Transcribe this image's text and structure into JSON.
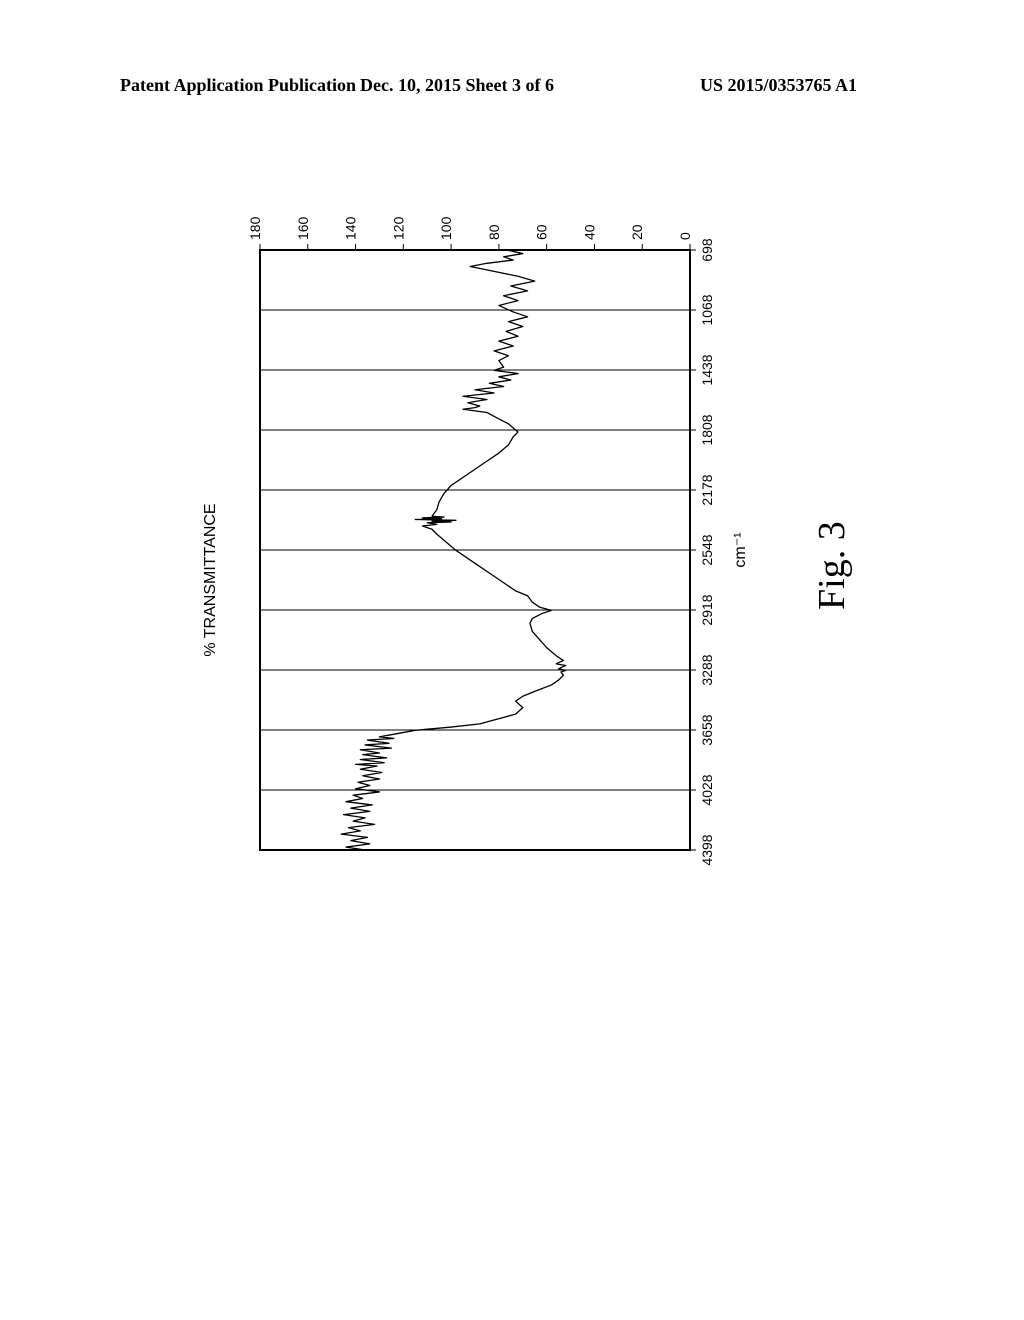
{
  "header": {
    "left": "Patent Application Publication",
    "middle": "Dec. 10, 2015  Sheet 3 of 6",
    "right": "US 2015/0353765 A1"
  },
  "figure_label": "Fig. 3",
  "chart": {
    "type": "line",
    "orientation_note": "rendered rotated -90deg like original (reads sideways)",
    "x_axis": {
      "label": "cm⁻¹",
      "ticks": [
        4398,
        4028,
        3658,
        3288,
        2918,
        2548,
        2178,
        1808,
        1438,
        1068,
        698
      ],
      "min": 4398,
      "max": 698,
      "tick_fontsize": 14,
      "label_fontsize": 16
    },
    "y_axis": {
      "label": "% TRANSMITTANCE",
      "ticks": [
        0,
        20,
        40,
        60,
        80,
        100,
        120,
        140,
        160,
        180
      ],
      "min": 0,
      "max": 180,
      "tick_fontsize": 14,
      "label_fontsize": 16
    },
    "grid": {
      "show_x": true,
      "show_y": false,
      "color": "#000000",
      "width": 1
    },
    "border_color": "#000000",
    "border_width": 2,
    "background_color": "#ffffff",
    "series": {
      "color": "#000000",
      "width": 1.3,
      "points": [
        [
          4398,
          136
        ],
        [
          4380,
          144
        ],
        [
          4360,
          134
        ],
        [
          4340,
          142
        ],
        [
          4320,
          135
        ],
        [
          4300,
          146
        ],
        [
          4280,
          138
        ],
        [
          4260,
          143
        ],
        [
          4240,
          132
        ],
        [
          4220,
          141
        ],
        [
          4200,
          136
        ],
        [
          4180,
          145
        ],
        [
          4160,
          134
        ],
        [
          4140,
          142
        ],
        [
          4120,
          133
        ],
        [
          4100,
          144
        ],
        [
          4080,
          137
        ],
        [
          4060,
          141
        ],
        [
          4040,
          130
        ],
        [
          4020,
          140
        ],
        [
          4000,
          134
        ],
        [
          3980,
          139
        ],
        [
          3960,
          130
        ],
        [
          3940,
          137
        ],
        [
          3920,
          129
        ],
        [
          3900,
          138
        ],
        [
          3880,
          131
        ],
        [
          3870,
          140
        ],
        [
          3860,
          128
        ],
        [
          3840,
          138
        ],
        [
          3830,
          127
        ],
        [
          3810,
          137
        ],
        [
          3800,
          130
        ],
        [
          3780,
          138
        ],
        [
          3770,
          125
        ],
        [
          3750,
          136
        ],
        [
          3740,
          126
        ],
        [
          3720,
          135
        ],
        [
          3710,
          124
        ],
        [
          3700,
          130
        ],
        [
          3660,
          115
        ],
        [
          3640,
          100
        ],
        [
          3620,
          88
        ],
        [
          3600,
          83
        ],
        [
          3560,
          73
        ],
        [
          3520,
          70
        ],
        [
          3480,
          73
        ],
        [
          3450,
          70
        ],
        [
          3420,
          65
        ],
        [
          3380,
          58
        ],
        [
          3350,
          55
        ],
        [
          3320,
          53
        ],
        [
          3300,
          54
        ],
        [
          3290,
          52
        ],
        [
          3280,
          55
        ],
        [
          3260,
          52
        ],
        [
          3250,
          56
        ],
        [
          3230,
          53
        ],
        [
          3200,
          56
        ],
        [
          3150,
          60
        ],
        [
          3100,
          63
        ],
        [
          3050,
          66
        ],
        [
          3000,
          67
        ],
        [
          2970,
          66
        ],
        [
          2940,
          62
        ],
        [
          2920,
          58
        ],
        [
          2900,
          63
        ],
        [
          2870,
          66
        ],
        [
          2830,
          68
        ],
        [
          2800,
          73
        ],
        [
          2750,
          78
        ],
        [
          2700,
          83
        ],
        [
          2650,
          88
        ],
        [
          2600,
          93
        ],
        [
          2550,
          98
        ],
        [
          2500,
          102
        ],
        [
          2450,
          106
        ],
        [
          2420,
          108
        ],
        [
          2400,
          112
        ],
        [
          2390,
          106
        ],
        [
          2380,
          110
        ],
        [
          2375,
          100
        ],
        [
          2370,
          108
        ],
        [
          2365,
          98
        ],
        [
          2360,
          115
        ],
        [
          2355,
          104
        ],
        [
          2350,
          112
        ],
        [
          2345,
          103
        ],
        [
          2340,
          108
        ],
        [
          2300,
          106
        ],
        [
          2250,
          105
        ],
        [
          2200,
          103
        ],
        [
          2150,
          100
        ],
        [
          2100,
          95
        ],
        [
          2050,
          90
        ],
        [
          2000,
          85
        ],
        [
          1950,
          80
        ],
        [
          1900,
          76
        ],
        [
          1850,
          74
        ],
        [
          1820,
          72
        ],
        [
          1770,
          76
        ],
        [
          1740,
          80
        ],
        [
          1700,
          85
        ],
        [
          1680,
          95
        ],
        [
          1670,
          90
        ],
        [
          1660,
          88
        ],
        [
          1640,
          93
        ],
        [
          1620,
          85
        ],
        [
          1600,
          95
        ],
        [
          1580,
          82
        ],
        [
          1560,
          90
        ],
        [
          1540,
          78
        ],
        [
          1520,
          84
        ],
        [
          1500,
          75
        ],
        [
          1480,
          80
        ],
        [
          1460,
          72
        ],
        [
          1440,
          82
        ],
        [
          1420,
          78
        ],
        [
          1380,
          80
        ],
        [
          1350,
          76
        ],
        [
          1320,
          82
        ],
        [
          1290,
          74
        ],
        [
          1260,
          80
        ],
        [
          1230,
          72
        ],
        [
          1200,
          77
        ],
        [
          1170,
          70
        ],
        [
          1140,
          76
        ],
        [
          1110,
          68
        ],
        [
          1080,
          74
        ],
        [
          1040,
          80
        ],
        [
          1010,
          72
        ],
        [
          980,
          78
        ],
        [
          950,
          68
        ],
        [
          920,
          75
        ],
        [
          890,
          65
        ],
        [
          860,
          72
        ],
        [
          830,
          82
        ],
        [
          800,
          92
        ],
        [
          780,
          85
        ],
        [
          760,
          74
        ],
        [
          740,
          78
        ],
        [
          720,
          70
        ],
        [
          700,
          76
        ],
        [
          698,
          70
        ]
      ]
    }
  }
}
